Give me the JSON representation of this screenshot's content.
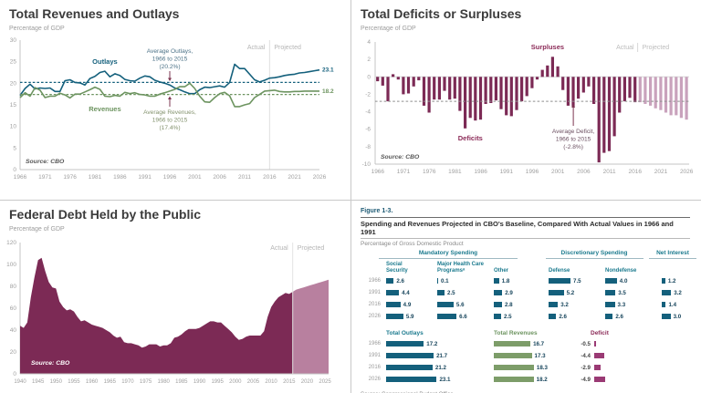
{
  "colors": {
    "teal": "#14607c",
    "teal_text": "#1b7a8e",
    "green": "#6d9460",
    "green_bar": "#7d9d69",
    "maroon": "#7c2a55",
    "maroon_light": "#c9a2bc",
    "debt_projected": "#b8809f",
    "deficit_table_bar": "#9a3a74",
    "series_label_maroon": "#8b2a57",
    "value_text": "#17455c",
    "axis_text": "#a0a0a0",
    "note_blue": "#4c7287",
    "note_green": "#83926d",
    "note_maroon_gray": "#6b4f60",
    "arrow": "#7d3550"
  },
  "chart_data": [
    {
      "type": "line",
      "title": "Total Revenues and Outlays",
      "ylabel": "Percentage of GDP",
      "x_range": [
        1966,
        2026
      ],
      "x_ticks": [
        1966,
        1971,
        1976,
        1981,
        1986,
        1991,
        1996,
        2001,
        2006,
        2011,
        2016,
        2021,
        2026
      ],
      "ylim": [
        0,
        30
      ],
      "y_ticks": [
        0,
        5,
        10,
        15,
        20,
        25,
        30
      ],
      "actual_through": 2016,
      "actual_label": "Actual",
      "projected_label": "Projected",
      "source": "Source:  CBO",
      "series": [
        {
          "name": "Outlays",
          "color_key": "teal",
          "average": 20.2,
          "end_label": "23.1",
          "values": [
            17.2,
            18.8,
            19.8,
            18.7,
            18.9,
            18.8,
            18.9,
            18.1,
            18.1,
            20.6,
            20.8,
            20.2,
            20.1,
            19.6,
            21.1,
            21.6,
            22.5,
            22.8,
            21.5,
            22.2,
            21.8,
            20.9,
            20.6,
            20.5,
            21.2,
            21.7,
            21.5,
            20.7,
            20.3,
            20.0,
            19.6,
            18.9,
            18.5,
            18.0,
            17.6,
            17.6,
            18.5,
            19.1,
            19.0,
            19.2,
            19.4,
            19.1,
            20.2,
            24.4,
            23.4,
            23.4,
            22.1,
            20.8,
            20.3,
            20.7,
            21.2,
            21.3,
            21.5,
            21.8,
            22.0,
            22.1,
            22.4,
            22.5,
            22.7,
            22.9,
            23.1
          ]
        },
        {
          "name": "Revenues",
          "color_key": "green",
          "average": 17.4,
          "end_label": "18.2",
          "values": [
            16.7,
            17.8,
            17.0,
            19.0,
            18.4,
            16.7,
            17.0,
            17.0,
            17.7,
            17.3,
            16.6,
            17.5,
            17.5,
            18.0,
            18.5,
            19.1,
            18.6,
            17.0,
            16.9,
            17.2,
            17.0,
            17.9,
            17.6,
            17.8,
            17.4,
            17.3,
            17.0,
            17.0,
            17.5,
            17.8,
            18.2,
            18.6,
            19.2,
            19.2,
            20.0,
            18.8,
            17.0,
            15.7,
            15.6,
            16.7,
            17.6,
            17.9,
            17.1,
            14.6,
            14.6,
            15.0,
            15.3,
            16.7,
            17.4,
            18.2,
            18.3,
            18.4,
            18.1,
            18.0,
            18.0,
            18.1,
            18.1,
            18.2,
            18.2,
            18.2,
            18.2
          ]
        }
      ],
      "annotations": [
        {
          "lines": [
            "Average Outlays,",
            "1966 to 2015",
            "(20.2%)"
          ],
          "target_series": 0
        },
        {
          "lines": [
            "Average Revenues,",
            "1966 to 2015",
            "(17.4%)"
          ],
          "target_series": 1
        }
      ]
    },
    {
      "type": "bar",
      "title": "Total Deficits or Surpluses",
      "ylabel": "Percentage of GDP",
      "x_range": [
        1966,
        2026
      ],
      "x_ticks": [
        1966,
        1971,
        1976,
        1981,
        1986,
        1991,
        1996,
        2001,
        2006,
        2011,
        2016,
        2021,
        2026
      ],
      "ylim": [
        -10,
        4
      ],
      "y_ticks": [
        4,
        2,
        0,
        -2,
        -4,
        -6,
        -8,
        -10
      ],
      "actual_through": 2016,
      "actual_label": "Actual",
      "projected_label": "Projected",
      "surpluses_label": "Surpluses",
      "deficits_label": "Deficits",
      "average": -2.8,
      "annotation_lines": [
        "Average Deficit,",
        "1966 to 2015",
        "(-2.8%)"
      ],
      "source": "Source:  CBO",
      "values": [
        -0.5,
        -1.0,
        -2.8,
        0.3,
        -0.3,
        -2.0,
        -1.9,
        -1.1,
        -0.4,
        -3.3,
        -4.1,
        -2.6,
        -2.6,
        -1.6,
        -2.6,
        -2.5,
        -3.9,
        -5.9,
        -4.7,
        -5.0,
        -4.9,
        -3.1,
        -3.0,
        -2.7,
        -3.7,
        -4.4,
        -4.5,
        -3.8,
        -2.8,
        -2.2,
        -1.3,
        -0.3,
        0.8,
        1.3,
        2.3,
        1.2,
        -1.5,
        -3.3,
        -3.4,
        -2.5,
        -1.8,
        -1.1,
        -3.1,
        -9.8,
        -8.7,
        -8.5,
        -6.8,
        -4.1,
        -2.8,
        -2.4,
        -2.9,
        -2.9,
        -3.1,
        -3.3,
        -3.6,
        -3.8,
        -4.1,
        -4.4,
        -4.4,
        -4.7,
        -4.9
      ]
    },
    {
      "type": "area",
      "title": "Federal Debt Held by the Public",
      "ylabel": "Percentage of GDP",
      "x_range": [
        1940,
        2026
      ],
      "x_ticks": [
        1940,
        1945,
        1950,
        1955,
        1960,
        1965,
        1970,
        1975,
        1980,
        1985,
        1990,
        1995,
        2000,
        2005,
        2010,
        2015,
        2020,
        2025
      ],
      "ylim": [
        0,
        120
      ],
      "y_ticks": [
        0,
        20,
        40,
        60,
        80,
        100,
        120
      ],
      "actual_through": 2016,
      "actual_label": "Actual",
      "projected_label": "Projected",
      "source": "Source:  CBO",
      "values": [
        44,
        42,
        47,
        70,
        88,
        104,
        106,
        94,
        84,
        79,
        78,
        66,
        61,
        58,
        59,
        57,
        52,
        48,
        49,
        47,
        45,
        44,
        43,
        42,
        40,
        38,
        35,
        33,
        34,
        29,
        28,
        28,
        27,
        26,
        24,
        25,
        27,
        27,
        27,
        25,
        26,
        26,
        28,
        33,
        34,
        36,
        39,
        41,
        41,
        41,
        42,
        44,
        46,
        48,
        48,
        47,
        47,
        44,
        41,
        38,
        34,
        31,
        32,
        34,
        35,
        35,
        35,
        35,
        39,
        52,
        61,
        66,
        70,
        72,
        74,
        73,
        75,
        77,
        78,
        79,
        80,
        81,
        82,
        83,
        84,
        85,
        86
      ]
    },
    {
      "type": "table",
      "figure_label": "Figure 1-3.",
      "title": "Spending and Revenues Projected in CBO's Baseline, Compared With Actual Values in 1966 and 1991",
      "subtitle": "Percentage of Gross Domestic Product",
      "groups": [
        "Mandatory Spending",
        "Discretionary Spending",
        "Net Interest"
      ],
      "columns": [
        [
          "Social",
          "Security"
        ],
        [
          "Major Health Care",
          "Programsᵃ"
        ],
        [
          "",
          "Other"
        ],
        [
          "",
          "Defense"
        ],
        [
          "",
          "Nondefense"
        ]
      ],
      "years": [
        "1966",
        "1991",
        "2016",
        "2026"
      ],
      "rows": [
        [
          2.6,
          0.1,
          1.8,
          7.5,
          4.0,
          1.2
        ],
        [
          4.4,
          2.5,
          2.9,
          5.2,
          3.5,
          3.2
        ],
        [
          4.9,
          5.6,
          2.8,
          3.2,
          3.3,
          1.4
        ],
        [
          5.9,
          6.6,
          2.5,
          2.6,
          2.6,
          3.0
        ]
      ],
      "totals": {
        "outlays_header": "Total Outlays",
        "revenues_header": "Total Revenues",
        "deficit_header": "Deficit",
        "outlays": [
          17.2,
          21.7,
          21.2,
          23.1
        ],
        "revenues": [
          16.7,
          17.3,
          18.3,
          18.2
        ],
        "deficit": [
          -0.5,
          -4.4,
          -2.9,
          -4.9
        ]
      },
      "source": "Source: Congressional Budget Office."
    }
  ]
}
